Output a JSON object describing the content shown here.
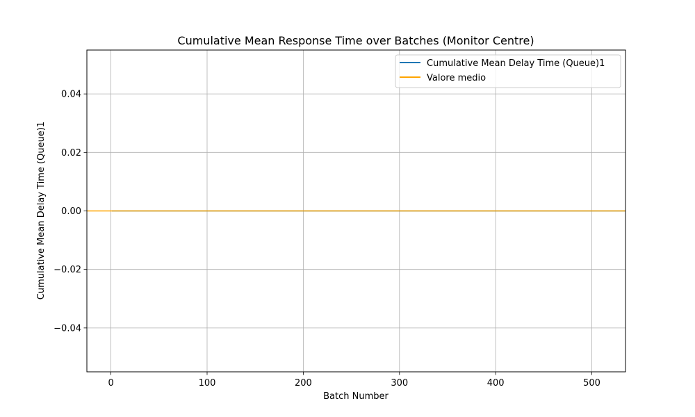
{
  "chart_data": {
    "type": "line",
    "title": "Cumulative Mean Response Time over Batches (Monitor Centre)",
    "xlabel": "Batch Number",
    "ylabel": "Cumulative Mean Delay Time (Queue)1",
    "xlim": [
      -25,
      535
    ],
    "ylim": [
      -0.055,
      0.055
    ],
    "x_ticks": [
      0,
      100,
      200,
      300,
      400,
      500
    ],
    "x_tick_labels": [
      "0",
      "100",
      "200",
      "300",
      "400",
      "500"
    ],
    "y_ticks": [
      -0.04,
      -0.02,
      0.0,
      0.02,
      0.04
    ],
    "y_tick_labels": [
      "−0.04",
      "−0.02",
      "0.00",
      "0.02",
      "0.04"
    ],
    "grid": true,
    "legend_position": "top-right",
    "series": [
      {
        "name": "Cumulative Mean Delay Time (Queue)1",
        "color": "#1f77b4",
        "x": [
          1,
          535
        ],
        "y": [
          0.0,
          0.0
        ]
      },
      {
        "name": "Valore medio",
        "color": "#ffa500",
        "kind": "hline",
        "y": 0.0
      }
    ]
  }
}
